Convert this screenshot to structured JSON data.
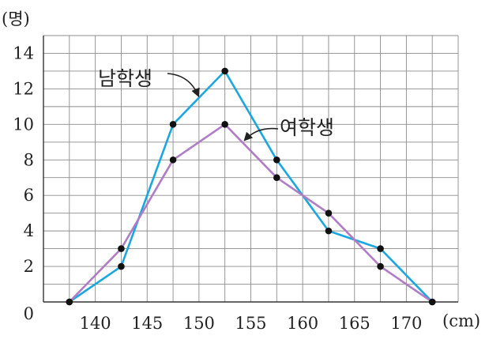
{
  "chart_data": {
    "type": "line",
    "xlabel": "(cm)",
    "ylabel": "(명)",
    "x_ticks": [
      140,
      145,
      150,
      155,
      160,
      165,
      170
    ],
    "y_ticks": [
      0,
      2,
      4,
      6,
      8,
      10,
      12,
      14
    ],
    "xlim": [
      135,
      175
    ],
    "ylim": [
      0,
      15
    ],
    "grid": true,
    "x": [
      137.5,
      142.5,
      147.5,
      152.5,
      157.5,
      162.5,
      167.5,
      172.5
    ],
    "series": [
      {
        "name": "남학생",
        "color": "#1aa7e0",
        "values": [
          0,
          2,
          10,
          13,
          8,
          4,
          3,
          0
        ]
      },
      {
        "name": "여학생",
        "color": "#b07cc6",
        "values": [
          0,
          3,
          8,
          10,
          7,
          5,
          2,
          0
        ]
      }
    ]
  }
}
